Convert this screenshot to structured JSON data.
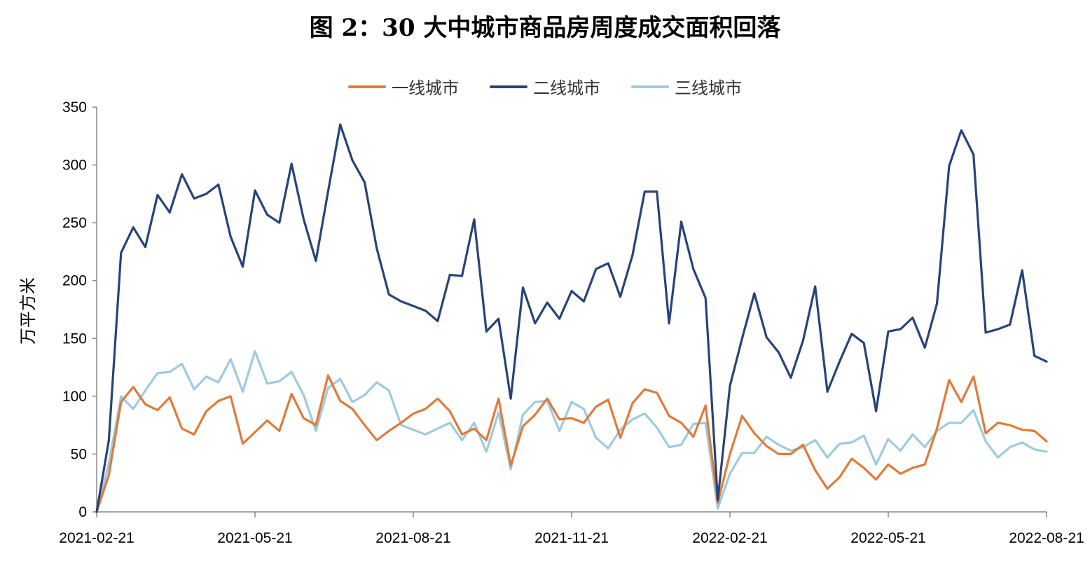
{
  "title": "图 2：30 大中城市商品房周度成交面积回落",
  "chart_data": {
    "type": "line",
    "title": "图 2：30 大中城市商品房周度成交面积回落",
    "xlabel": "",
    "ylabel": "万平方米",
    "ylim": [
      0,
      350
    ],
    "yticks": [
      0,
      50,
      100,
      150,
      200,
      250,
      300,
      350
    ],
    "x_tick_labels": [
      "2021-02-21",
      "2021-05-21",
      "2021-08-21",
      "2021-11-21",
      "2022-02-21",
      "2022-05-21",
      "2022-08-21"
    ],
    "x_tick_index": [
      0,
      13,
      26,
      39,
      52,
      65,
      78
    ],
    "grid": false,
    "legend_position": "top-center",
    "series": [
      {
        "name": "一线城市",
        "color": "#E07B39",
        "values": [
          0,
          32,
          95,
          108,
          93,
          88,
          99,
          72,
          67,
          87,
          96,
          100,
          59,
          69,
          79,
          70,
          102,
          81,
          75,
          118,
          96,
          89,
          75,
          62,
          70,
          77,
          85,
          89,
          98,
          87,
          67,
          72,
          62,
          98,
          40,
          74,
          84,
          98,
          80,
          81,
          77,
          91,
          97,
          64,
          94,
          106,
          103,
          83,
          77,
          65,
          92,
          8,
          50,
          83,
          68,
          57,
          50,
          50,
          58,
          36,
          20,
          30,
          46,
          38,
          28,
          41,
          33,
          38,
          41,
          72,
          114,
          95,
          117,
          68,
          77,
          75,
          71,
          70,
          61
        ]
      },
      {
        "name": "二线城市",
        "color": "#264478",
        "values": [
          0,
          62,
          224,
          246,
          229,
          274,
          259,
          292,
          271,
          275,
          283,
          238,
          212,
          278,
          257,
          250,
          301,
          253,
          217,
          277,
          335,
          304,
          285,
          228,
          188,
          182,
          178,
          174,
          165,
          205,
          204,
          253,
          156,
          167,
          98,
          194,
          163,
          181,
          167,
          191,
          182,
          210,
          215,
          186,
          222,
          277,
          277,
          163,
          251,
          210,
          185,
          10,
          109,
          150,
          189,
          151,
          138,
          116,
          148,
          195,
          104,
          130,
          154,
          146,
          87,
          156,
          158,
          168,
          142,
          180,
          299,
          330,
          309,
          155,
          158,
          162,
          209,
          135,
          130
        ]
      },
      {
        "name": "三线城市",
        "color": "#9DCBDD",
        "values": [
          0,
          42,
          100,
          89,
          105,
          120,
          121,
          128,
          106,
          117,
          112,
          132,
          104,
          139,
          111,
          113,
          121,
          101,
          70,
          107,
          115,
          95,
          101,
          112,
          105,
          75,
          71,
          67,
          72,
          77,
          62,
          77,
          52,
          86,
          37,
          84,
          95,
          96,
          70,
          95,
          89,
          64,
          55,
          71,
          80,
          85,
          73,
          56,
          58,
          76,
          77,
          3,
          33,
          51,
          51,
          65,
          58,
          53,
          56,
          62,
          47,
          59,
          60,
          66,
          41,
          63,
          53,
          67,
          56,
          70,
          77,
          77,
          88,
          61,
          47,
          56,
          60,
          54,
          52
        ]
      }
    ]
  }
}
